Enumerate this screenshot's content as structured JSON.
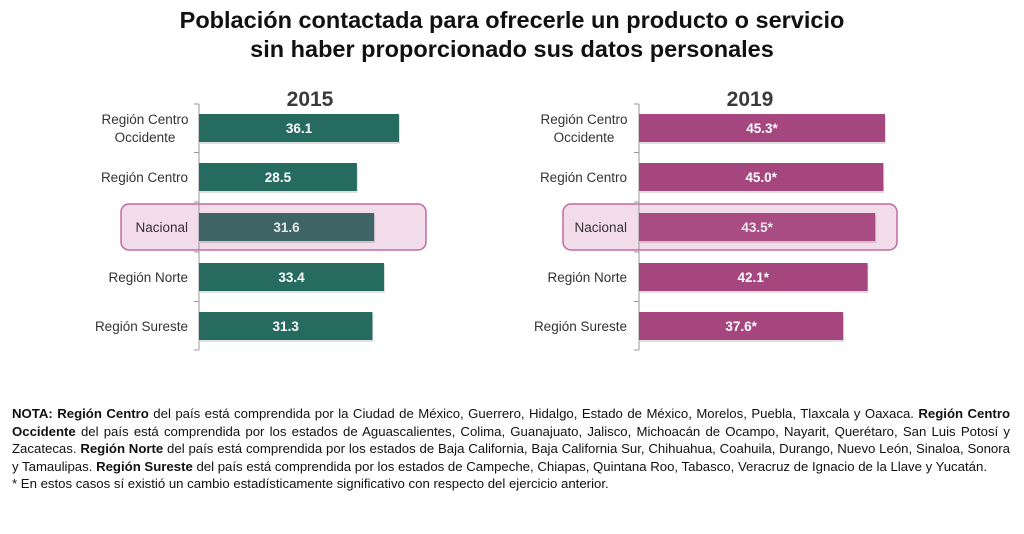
{
  "title": {
    "line1": "Población contactada para ofrecerle un producto o servicio",
    "line2": "sin haber proporcionado sus datos personales"
  },
  "colors": {
    "bar_2015": "#256b5f",
    "bar_2015_highlight": "#3e6466",
    "bar_2019": "#a6467f",
    "bar_2019_highlight": "#a84c83",
    "highlight_fill": "#f2dcea",
    "highlight_stroke": "#c16aa0",
    "label_text": "#333333",
    "value_text": "#ffffff"
  },
  "chart_data": [
    {
      "type": "bar",
      "orientation": "horizontal",
      "title": "2015",
      "categories": [
        "Región Centro Occidente",
        "Región Centro",
        "Nacional",
        "Región Norte",
        "Región Sureste"
      ],
      "category_lines": [
        [
          "Región Centro",
          "Occidente"
        ],
        [
          "Región Centro"
        ],
        [
          "Nacional"
        ],
        [
          "Región Norte"
        ],
        [
          "Región Sureste"
        ]
      ],
      "values": [
        36.1,
        28.5,
        31.6,
        33.4,
        31.3
      ],
      "data_labels": [
        "36.1",
        "28.5",
        "31.6",
        "33.4",
        "31.3"
      ],
      "highlight_category": "Nacional",
      "xlim": [
        0,
        40
      ],
      "grid": false,
      "legend": "none"
    },
    {
      "type": "bar",
      "orientation": "horizontal",
      "title": "2019",
      "categories": [
        "Región Centro Occidente",
        "Región Centro",
        "Nacional",
        "Región Norte",
        "Región Sureste"
      ],
      "category_lines": [
        [
          "Región Centro",
          "Occidente"
        ],
        [
          "Región Centro"
        ],
        [
          "Nacional"
        ],
        [
          "Región Norte"
        ],
        [
          "Región Sureste"
        ]
      ],
      "values": [
        45.3,
        45.0,
        43.5,
        42.1,
        37.6
      ],
      "data_labels": [
        "45.3*",
        "45.0*",
        "43.5*",
        "42.1*",
        "37.6*"
      ],
      "highlight_category": "Nacional",
      "xlim": [
        0,
        50
      ],
      "grid": false,
      "legend": "none"
    }
  ],
  "note": {
    "segments": [
      {
        "bold": true,
        "text": "NOTA: Región Centro"
      },
      {
        "bold": false,
        "text": " del país está comprendida por la Ciudad de México, Guerrero, Hidalgo, Estado de México, Morelos, Puebla, Tlaxcala y Oaxaca. "
      },
      {
        "bold": true,
        "text": "Región Centro Occidente"
      },
      {
        "bold": false,
        "text": " del país está comprendida por los estados de Aguascalientes, Colima, Guanajuato, Jalisco, Michoacán de Ocampo, Nayarit, Querétaro, San Luis Potosí y Zacatecas. "
      },
      {
        "bold": true,
        "text": "Región Norte"
      },
      {
        "bold": false,
        "text": " del país está comprendida por los estados de Baja California, Baja California Sur, Chihuahua, Coahuila, Durango, Nuevo León, Sinaloa, Sonora y Tamaulipas. "
      },
      {
        "bold": true,
        "text": "Región Sureste"
      },
      {
        "bold": false,
        "text": " del país está comprendida por los estados de Campeche, Chiapas, Quintana Roo, Tabasco, Veracruz de Ignacio de la Llave y Yucatán."
      }
    ],
    "footnote": "* En estos casos sí existió un cambio estadísticamente significativo con respecto del ejercicio anterior."
  }
}
